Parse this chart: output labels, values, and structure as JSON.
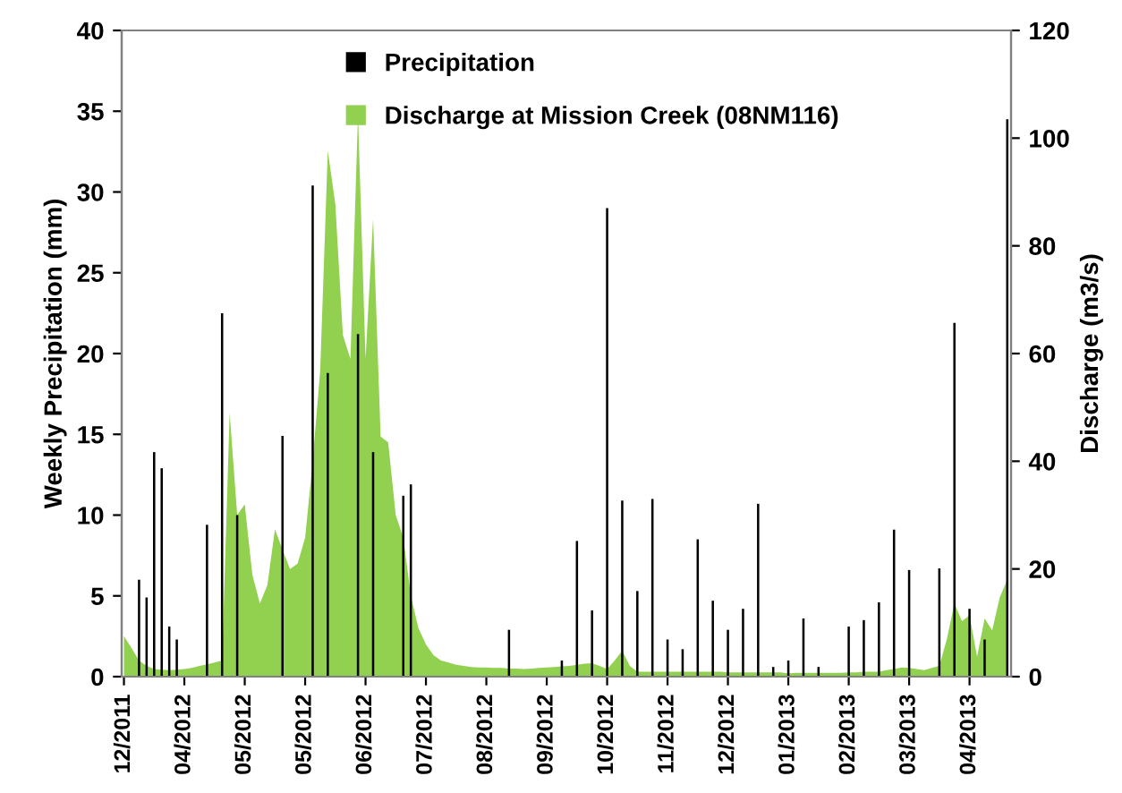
{
  "chart_data": {
    "type": "bar",
    "categories": [
      "12/2011",
      null,
      null,
      null,
      null,
      null,
      null,
      null,
      "04/2012",
      null,
      null,
      null,
      null,
      null,
      null,
      null,
      "05/2012",
      null,
      null,
      null,
      null,
      null,
      null,
      null,
      "05/2012",
      null,
      null,
      null,
      null,
      null,
      null,
      null,
      "06/2012",
      null,
      null,
      null,
      null,
      null,
      null,
      null,
      "07/2012",
      null,
      null,
      null,
      null,
      null,
      null,
      null,
      "08/2012",
      null,
      null,
      null,
      null,
      null,
      null,
      null,
      "09/2012",
      null,
      null,
      null,
      null,
      null,
      null,
      null,
      "10/2012",
      null,
      null,
      null,
      null,
      null,
      null,
      null,
      "11/2012",
      null,
      null,
      null,
      null,
      null,
      null,
      null,
      "12/2012",
      null,
      null,
      null,
      null,
      null,
      null,
      null,
      "01/2013",
      null,
      null,
      null,
      null,
      null,
      null,
      null,
      "02/2013",
      null,
      null,
      null,
      null,
      null,
      null,
      null,
      "03/2013",
      null,
      null,
      null,
      null,
      null,
      null,
      null,
      "04/2013",
      null,
      null,
      null,
      null,
      null
    ],
    "ylim": [
      0,
      40
    ],
    "yticks": [
      0,
      5,
      10,
      15,
      20,
      25,
      30,
      35,
      40
    ],
    "y2lim": [
      0,
      120
    ],
    "y2ticks": [
      0,
      20,
      40,
      60,
      80,
      100,
      120
    ],
    "ylabel": "Weekly Precipitation (mm)",
    "y2label": "Discharge (m3/s)",
    "legend": "top",
    "series": [
      {
        "name": "Precipitation",
        "color": "#000000",
        "values": [
          null,
          null,
          6.0,
          4.9,
          13.9,
          12.9,
          3.1,
          2.3,
          null,
          null,
          null,
          9.4,
          null,
          22.5,
          null,
          10.0,
          null,
          null,
          null,
          null,
          null,
          14.9,
          null,
          null,
          null,
          30.4,
          null,
          18.8,
          null,
          null,
          null,
          21.2,
          null,
          13.9,
          null,
          null,
          null,
          11.2,
          11.9,
          null,
          null,
          null,
          null,
          null,
          null,
          null,
          null,
          null,
          null,
          null,
          null,
          2.9,
          null,
          null,
          null,
          null,
          null,
          null,
          1.0,
          null,
          8.4,
          null,
          4.1,
          null,
          29.0,
          null,
          10.9,
          null,
          5.3,
          null,
          11.0,
          null,
          2.3,
          null,
          1.7,
          null,
          8.5,
          null,
          4.7,
          null,
          2.9,
          null,
          4.2,
          null,
          10.7,
          null,
          0.6,
          null,
          1.0,
          null,
          3.6,
          null,
          0.6,
          null,
          null,
          null,
          3.1,
          null,
          3.5,
          null,
          4.6,
          null,
          9.1,
          null,
          6.6,
          null,
          null,
          null,
          6.7,
          null,
          21.9,
          null,
          4.2,
          null,
          2.3,
          null,
          null,
          34.5
        ]
      },
      {
        "name": "Discharge at Mission Creek (08NM116)",
        "type": "area",
        "axis": "y2",
        "color": "#92d050",
        "values": [
          7.5,
          5.3,
          3,
          2,
          1.4,
          1.3,
          1.2,
          1.3,
          1.4,
          1.6,
          2,
          2.3,
          2.6,
          3,
          49,
          30,
          32,
          19,
          13.6,
          17,
          27.4,
          23.6,
          20,
          21,
          25.8,
          40,
          57,
          97.7,
          87.7,
          63.4,
          59,
          104.5,
          59,
          85,
          44.6,
          43.5,
          30,
          25.8,
          15,
          9,
          6,
          4,
          3,
          2.6,
          2.2,
          2,
          1.8,
          1.7,
          1.7,
          1.6,
          1.6,
          1.5,
          1.5,
          1.4,
          1.5,
          1.6,
          1.7,
          1.8,
          1.9,
          2,
          2.2,
          2.4,
          2.5,
          2,
          1.4,
          3,
          4.8,
          2,
          0.9,
          0.9,
          0.9,
          0.9,
          0.9,
          0.9,
          0.9,
          0.9,
          0.9,
          0.9,
          0.9,
          0.9,
          0.8,
          0.8,
          0.8,
          0.8,
          0.8,
          0.8,
          0.8,
          0.8,
          0.6,
          0.7,
          0.7,
          0.7,
          0.7,
          0.7,
          0.7,
          0.7,
          0.8,
          0.8,
          0.9,
          0.9,
          0.9,
          1.2,
          1.4,
          1.7,
          1.6,
          1.4,
          1.2,
          1.6,
          2,
          7,
          13.6,
          10.3,
          11.4,
          3.7,
          10.8,
          8.6,
          14.7,
          18
        ]
      }
    ]
  }
}
